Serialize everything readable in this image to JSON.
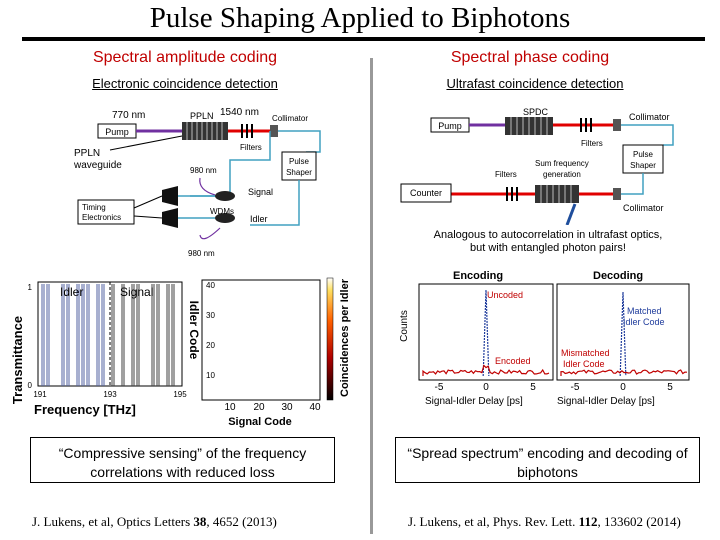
{
  "slide": {
    "title": "Pulse Shaping Applied to Biphotons"
  },
  "left": {
    "heading": "Spectral amplitude coding",
    "subheading": "Electronic coincidence detection",
    "setup": {
      "laser_770": "770 nm",
      "laser_1540": "1540 nm",
      "pump": "Pump",
      "ppln": "PPLN",
      "ppln_waveguide_line1": "PPLN",
      "ppln_waveguide_line2": "waveguide",
      "collimator": "Collimator",
      "filters": "Filters",
      "pulse_shaper_line1": "Pulse",
      "pulse_shaper_line2": "Shaper",
      "nm980_top": "980 nm",
      "signal": "Signal",
      "idler": "Idler",
      "wdms": "WDMs",
      "timing_line1": "Timing",
      "timing_line2": "Electronics",
      "nm980_bottom": "980 nm"
    },
    "spectrum_plot": {
      "ylabel": "Transmittance",
      "xlabel": "Frequency [THz]",
      "idler_label": "Idler",
      "signal_label": "Signal",
      "y_ticks": [
        "1",
        "0"
      ],
      "x_ticks": [
        "191",
        "193",
        "195"
      ]
    },
    "heatmap": {
      "ylabel": "Idler Code",
      "xlabel": "Signal Code",
      "colorbar_label": "Coincidences per Idler",
      "y_ticks": [
        "40",
        "30",
        "20",
        "10"
      ],
      "x_ticks": [
        "10",
        "20",
        "30",
        "40"
      ]
    },
    "caption": "“Compressive sensing” of the frequency correlations with reduced loss",
    "reference_prefix": "J. Lukens, et al, Optics Letters ",
    "reference_volume": "38",
    "reference_suffix": ", 4652 (2013)"
  },
  "right": {
    "heading": "Spectral phase coding",
    "subheading": "Ultrafast coincidence detection",
    "setup": {
      "spdc": "SPDC",
      "pump": "Pump",
      "collimator_top": "Collimator",
      "filters_top": "Filters",
      "pulse_shaper_line1": "Pulse",
      "pulse_shaper_line2": "Shaper",
      "sfg_line1": "Sum frequency",
      "sfg_line2": "generation",
      "filters_bottom": "Filters",
      "counter": "Counter",
      "collimator_bottom": "Collimator"
    },
    "note_line1": "Analogous to autocorrelation in ultrafast optics,",
    "note_line2": "but with entangled photon pairs!",
    "plot": {
      "ylabel": "Counts",
      "encoding_title": "Encoding",
      "decoding_title": "Decoding",
      "uncoded": "Uncoded",
      "encoded": "Encoded",
      "matched_line1": "Matched",
      "matched_line2": "Idler Code",
      "mismatched_line1": "Mismatched",
      "mismatched_line2": "Idler Code",
      "x_ticks": [
        "-5",
        "0",
        "5"
      ],
      "xlabel": "Signal-Idler Delay [ps]"
    },
    "caption": "“Spread spectrum” encoding and decoding of biphotons",
    "reference_prefix": "J. Lukens, et al, Phys. Rev. Lett. ",
    "reference_volume": "112",
    "reference_suffix": ", 133602 (2014)"
  },
  "colors": {
    "heading": "#c00000",
    "pump_beam": "#7030a0",
    "red_beam": "#e00000",
    "fiber": "#40a0c0",
    "divider": "#999999"
  },
  "icons": [
    "arrow-icon",
    "fiber-coil-icon",
    "detector-icon",
    "grating-icon",
    "lens-icon"
  ]
}
